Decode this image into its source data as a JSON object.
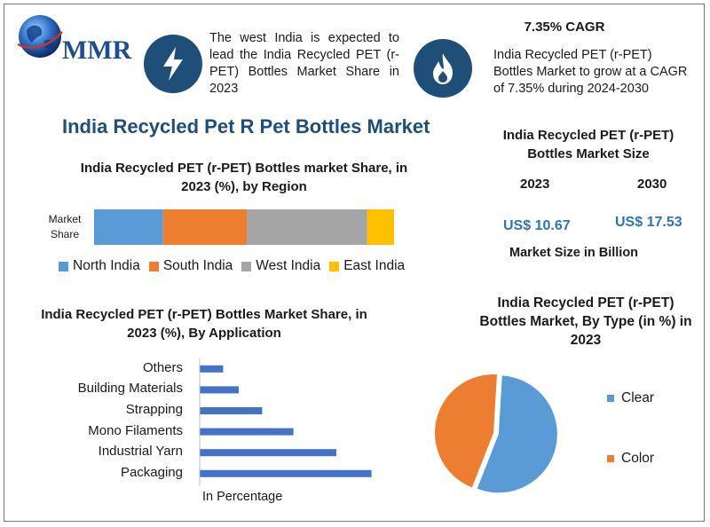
{
  "logo": {
    "text": "MMR"
  },
  "info_left": {
    "text": "The west India is expected to lead the India Recycled PET (r-PET) Bottles Market Share in 2023",
    "icon": "lightning-icon"
  },
  "info_right": {
    "heading": "7.35% CAGR",
    "text": "India Recycled PET (r-PET) Bottles Market to grow at a CAGR of 7.35% during 2024-2030",
    "icon": "flame-icon"
  },
  "main_title": "India Recycled Pet R Pet Bottles Market",
  "market_size": {
    "title": "India Recycled PET (r-PET) Bottles Market Size",
    "year1": "2023",
    "year2": "2030",
    "value1": "US$ 10.67",
    "value2": "US$ 17.53",
    "caption": "Market Size in Billion"
  },
  "colors": {
    "north": "#5b9bd5",
    "south": "#ed7d31",
    "west": "#a5a5a5",
    "east": "#ffc000",
    "bar": "#4472c4",
    "clear": "#5b9bd5",
    "color": "#ed7d31",
    "accent": "#1f4e79"
  },
  "chart_data": [
    {
      "type": "bar",
      "orientation": "horizontal-stacked",
      "title": "India Recycled PET (r-PET) Bottles market Share, in 2023 (%), by Region",
      "categories": [
        "Market Share"
      ],
      "series": [
        {
          "name": "North India",
          "values": [
            23
          ]
        },
        {
          "name": "South India",
          "values": [
            28
          ]
        },
        {
          "name": "West India",
          "values": [
            40
          ]
        },
        {
          "name": "East India",
          "values": [
            9
          ]
        }
      ],
      "legend": "bottom"
    },
    {
      "type": "bar",
      "orientation": "horizontal",
      "title": "India Recycled PET (r-PET) Bottles Market Share, in 2023 (%), By Application",
      "categories": [
        "Packaging",
        "Industrial Yarn",
        "Mono Filaments",
        "Strapping",
        "Building Materials",
        "Others"
      ],
      "values": [
        44,
        35,
        24,
        16,
        10,
        6
      ],
      "xlabel": "In Percentage",
      "ylabel": ""
    },
    {
      "type": "pie",
      "title": "India Recycled PET (r-PET) Bottles Market, By Type (in %) in 2023",
      "labels": [
        "Clear",
        "Color"
      ],
      "values": [
        55,
        45
      ],
      "legend": "right"
    }
  ]
}
